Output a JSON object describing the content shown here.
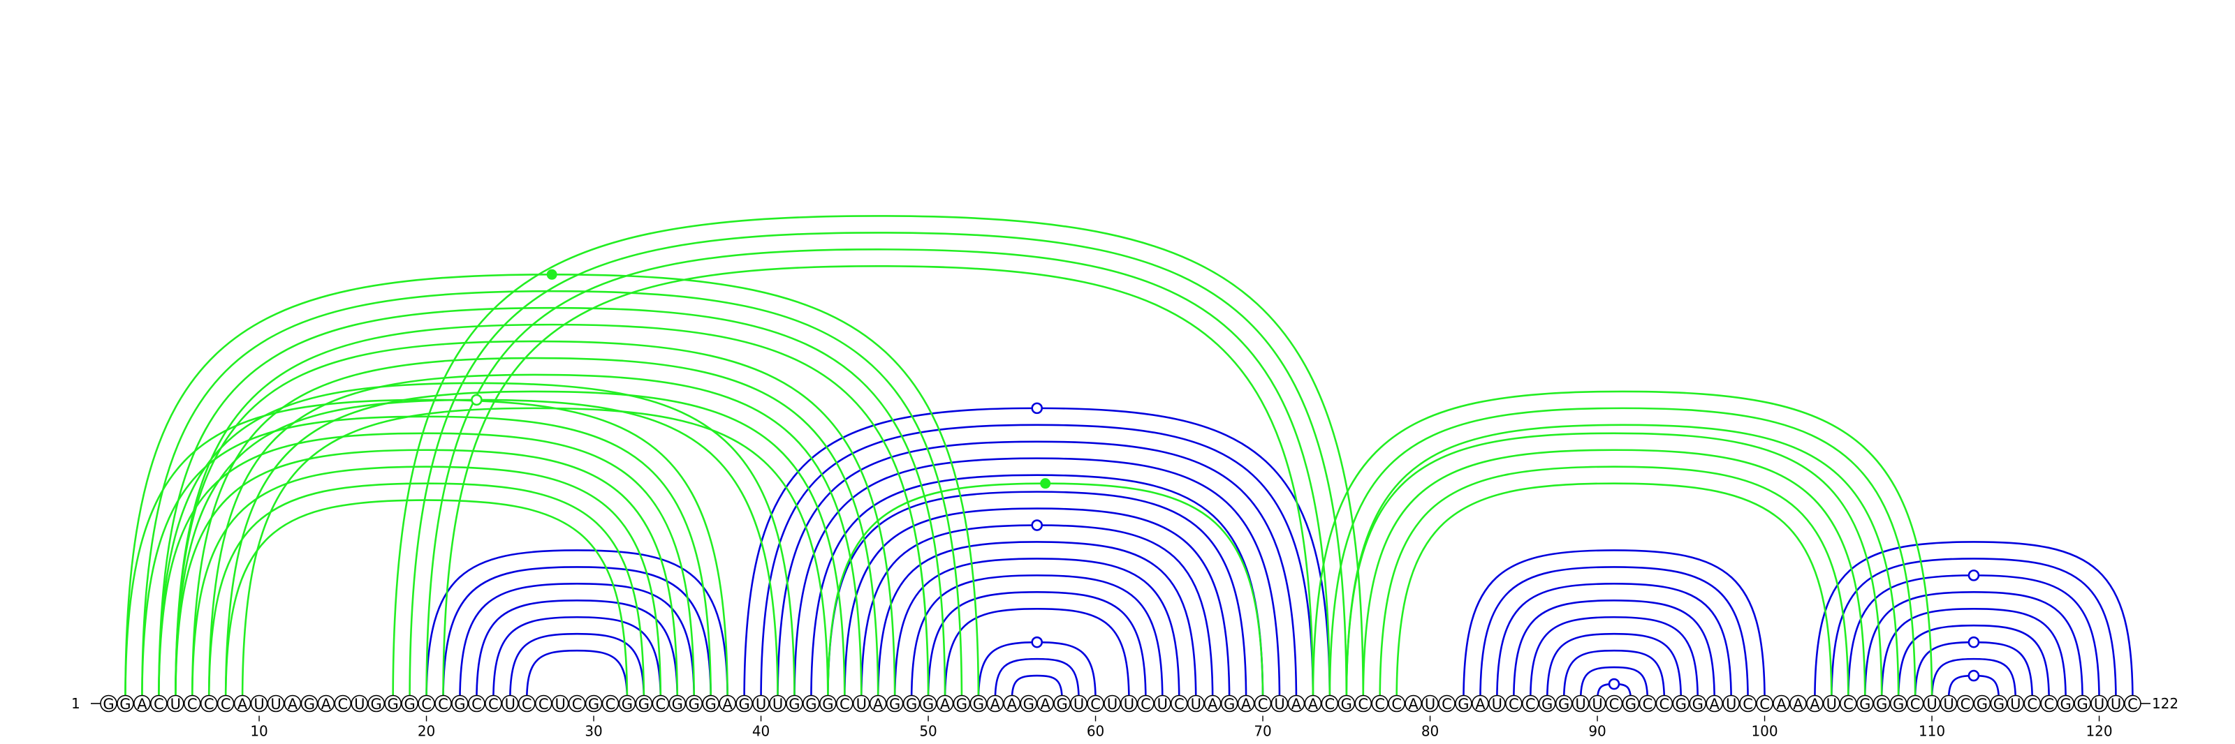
{
  "sequence": "GGACUCCCAUUAGACUGGGCCGCCUCCUCGCGGCGGGAGUUGGGCUAGGGAGGAAGAGUCUUCUCUAGACUAACGCCCAUCGAUCCGGUUCGCCGGAUCCAAAUCGGGCUUCGGUCCGGUUC",
  "start_label": "1",
  "end_label": "122",
  "ticks": [
    "10",
    "20",
    "30",
    "40",
    "50",
    "60",
    "70",
    "80",
    "90",
    "100",
    "110",
    "120"
  ],
  "colors": {
    "blue": "#0000dd",
    "green": "#22ee22"
  },
  "arc_groups": [
    {
      "color": "blue",
      "pairs": [
        [
          20,
          38
        ],
        [
          21,
          37
        ],
        [
          22,
          36
        ],
        [
          23,
          35
        ],
        [
          24,
          34
        ],
        [
          25,
          33
        ],
        [
          26,
          32
        ]
      ]
    },
    {
      "color": "blue",
      "pairs": [
        [
          39,
          74
        ],
        [
          40,
          73
        ],
        [
          41,
          72
        ],
        [
          42,
          71
        ],
        [
          43,
          70
        ],
        [
          44,
          69
        ],
        [
          45,
          68
        ],
        [
          46,
          67
        ],
        [
          47,
          66
        ],
        [
          48,
          65
        ],
        [
          49,
          64
        ],
        [
          50,
          63
        ],
        [
          51,
          62
        ],
        [
          53,
          60
        ],
        [
          54,
          59
        ],
        [
          55,
          58
        ]
      ]
    },
    {
      "color": "blue",
      "pairs": [
        [
          82,
          100
        ],
        [
          83,
          99
        ],
        [
          84,
          98
        ],
        [
          85,
          97
        ],
        [
          86,
          96
        ],
        [
          87,
          95
        ],
        [
          88,
          94
        ],
        [
          89,
          93
        ],
        [
          90,
          92
        ]
      ]
    },
    {
      "color": "blue",
      "pairs": [
        [
          103,
          122
        ],
        [
          104,
          121
        ],
        [
          105,
          120
        ],
        [
          106,
          119
        ],
        [
          107,
          118
        ],
        [
          108,
          117
        ],
        [
          109,
          116
        ],
        [
          110,
          115
        ],
        [
          111,
          114
        ]
      ]
    },
    {
      "color": "green",
      "pairs": [
        [
          2,
          38
        ],
        [
          3,
          37
        ],
        [
          4,
          36
        ],
        [
          5,
          35
        ],
        [
          6,
          34
        ],
        [
          7,
          33
        ],
        [
          8,
          32
        ]
      ]
    },
    {
      "color": "green",
      "pairs": [
        [
          5,
          48
        ],
        [
          6,
          47
        ],
        [
          7,
          46
        ],
        [
          8,
          45
        ],
        [
          9,
          44
        ]
      ]
    },
    {
      "color": "green",
      "pairs": [
        [
          2,
          53
        ],
        [
          3,
          52
        ],
        [
          4,
          51
        ],
        [
          5,
          50
        ]
      ]
    },
    {
      "color": "green",
      "pairs": [
        [
          4,
          42
        ],
        [
          5,
          41
        ]
      ]
    },
    {
      "color": "green",
      "pairs": [
        [
          18,
          76
        ],
        [
          19,
          75
        ],
        [
          20,
          74
        ],
        [
          21,
          73
        ]
      ]
    },
    {
      "color": "green",
      "pairs": [
        [
          44,
          70
        ]
      ]
    },
    {
      "color": "green",
      "pairs": [
        [
          75,
          107
        ],
        [
          76,
          106
        ],
        [
          77,
          105
        ],
        [
          78,
          104
        ]
      ]
    },
    {
      "color": "green",
      "pairs": [
        [
          73,
          110
        ],
        [
          74,
          109
        ],
        [
          75,
          108
        ]
      ]
    }
  ],
  "markers": [
    {
      "color": "green",
      "style": "filled",
      "pair": [
        2,
        53
      ]
    },
    {
      "color": "green",
      "style": "open",
      "pair": [
        5,
        41
      ]
    },
    {
      "color": "green",
      "style": "filled",
      "pair": [
        44,
        70
      ]
    },
    {
      "color": "blue",
      "style": "open",
      "pair": [
        39,
        74
      ]
    },
    {
      "color": "blue",
      "style": "open",
      "pair": [
        46,
        67
      ]
    },
    {
      "color": "blue",
      "style": "open",
      "pair": [
        53,
        60
      ]
    },
    {
      "color": "blue",
      "style": "open",
      "pair": [
        90,
        92
      ]
    },
    {
      "color": "blue",
      "style": "open",
      "pair": [
        105,
        120
      ]
    },
    {
      "color": "blue",
      "style": "open",
      "pair": [
        109,
        116
      ]
    },
    {
      "color": "blue",
      "style": "open",
      "pair": [
        111,
        114
      ]
    }
  ]
}
